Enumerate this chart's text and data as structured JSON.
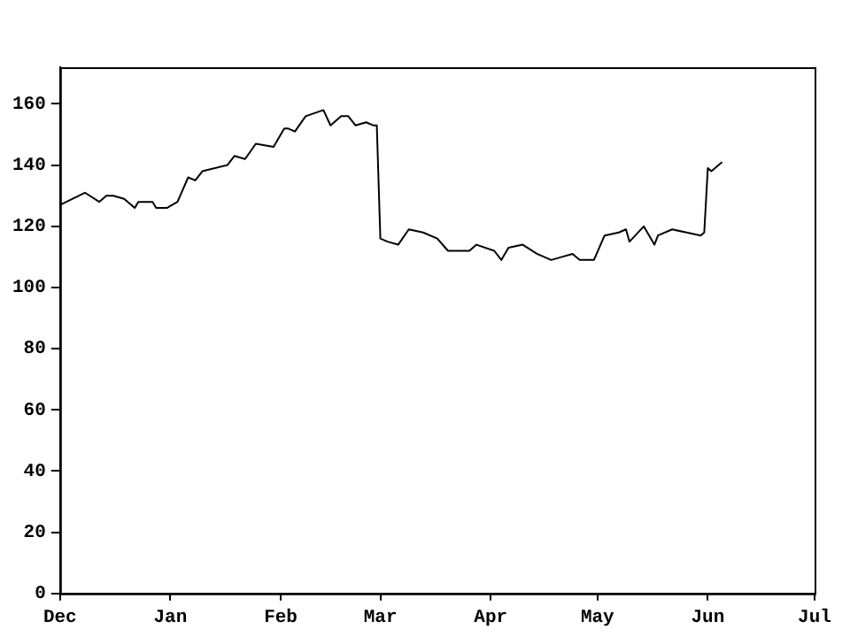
{
  "chart_data": {
    "type": "line",
    "categories": [
      "Dec",
      null,
      null,
      null,
      null,
      null,
      null,
      null,
      null,
      null,
      null,
      null,
      null,
      null,
      null,
      null,
      null,
      null,
      null,
      null,
      null,
      null,
      null,
      null,
      null,
      null,
      null,
      null,
      null,
      null,
      null,
      "Jan",
      null,
      null,
      null,
      null,
      null,
      null,
      null,
      null,
      null,
      null,
      null,
      null,
      null,
      null,
      null,
      null,
      null,
      null,
      null,
      null,
      null,
      null,
      null,
      null,
      null,
      null,
      null,
      null,
      null,
      null,
      "Feb",
      null,
      null,
      null,
      null,
      null,
      null,
      null,
      null,
      null,
      null,
      null,
      null,
      null,
      null,
      null,
      null,
      null,
      null,
      null,
      null,
      null,
      null,
      null,
      null,
      null,
      null,
      null,
      "Mar",
      null,
      null,
      null,
      null,
      null,
      null,
      null,
      null,
      null,
      null,
      null,
      null,
      null,
      null,
      null,
      null,
      null,
      null,
      null,
      null,
      null,
      null,
      null,
      null,
      null,
      null,
      null,
      null,
      null,
      null,
      "Apr",
      null,
      null,
      null,
      null,
      null,
      null,
      null,
      null,
      null,
      null,
      null,
      null,
      null,
      null,
      null,
      null,
      null,
      null,
      null,
      null,
      null,
      null,
      null,
      null,
      null,
      null,
      null,
      null,
      null,
      "May",
      null,
      null,
      null,
      null,
      null,
      null,
      null,
      null,
      null,
      null,
      null,
      null,
      null,
      null,
      null,
      null,
      null,
      null,
      null,
      null,
      null,
      null,
      null,
      null,
      null,
      null,
      null,
      null,
      null,
      null,
      "Jun",
      null,
      null,
      null,
      null,
      null,
      null,
      null,
      null,
      null,
      null,
      null,
      null,
      null,
      null,
      null,
      null,
      null,
      null,
      null,
      null,
      null,
      null,
      null,
      null,
      null,
      null,
      null,
      null,
      null,
      "Jul"
    ],
    "series": [
      {
        "color": "#000000",
        "values": [
          127,
          null,
          null,
          null,
          null,
          null,
          null,
          131,
          null,
          null,
          null,
          128,
          null,
          130,
          null,
          130,
          null,
          null,
          129,
          null,
          null,
          126,
          128,
          null,
          null,
          null,
          128,
          126,
          null,
          null,
          126,
          null,
          null,
          128,
          null,
          null,
          136,
          null,
          135,
          null,
          138,
          null,
          null,
          null,
          null,
          null,
          null,
          140,
          null,
          143,
          null,
          null,
          142,
          null,
          null,
          147,
          null,
          null,
          null,
          null,
          146,
          148,
          null,
          152,
          152,
          null,
          151,
          null,
          null,
          156,
          null,
          null,
          null,
          null,
          158,
          null,
          153,
          null,
          null,
          156,
          null,
          156,
          null,
          153,
          null,
          null,
          154,
          null,
          153,
          153,
          116,
          null,
          115,
          null,
          null,
          114,
          null,
          null,
          119,
          null,
          null,
          null,
          118,
          null,
          null,
          null,
          116,
          null,
          null,
          112,
          null,
          null,
          null,
          null,
          null,
          112,
          null,
          114,
          null,
          null,
          null,
          null,
          112,
          null,
          109,
          null,
          113,
          null,
          null,
          null,
          114,
          null,
          null,
          null,
          111,
          null,
          null,
          null,
          109,
          null,
          null,
          110,
          null,
          null,
          111,
          null,
          109,
          null,
          null,
          null,
          109,
          null,
          null,
          117,
          null,
          null,
          null,
          118,
          null,
          119,
          115,
          null,
          null,
          null,
          120,
          null,
          null,
          114,
          117,
          null,
          null,
          null,
          119,
          null,
          null,
          null,
          118,
          null,
          null,
          null,
          117,
          118,
          139,
          138,
          null,
          null,
          141,
          null,
          null,
          null,
          null,
          null,
          null,
          null,
          null,
          null,
          null,
          null,
          null,
          null,
          null,
          null,
          null,
          null,
          null,
          null,
          null,
          null,
          null,
          null,
          null,
          null,
          null
        ]
      }
    ],
    "ylim": [
      0,
      172
    ],
    "yticks": [
      0,
      20,
      40,
      60,
      80,
      100,
      120,
      140,
      160
    ],
    "grid": false,
    "legend": false,
    "marker": "none",
    "line_style": "solid"
  }
}
